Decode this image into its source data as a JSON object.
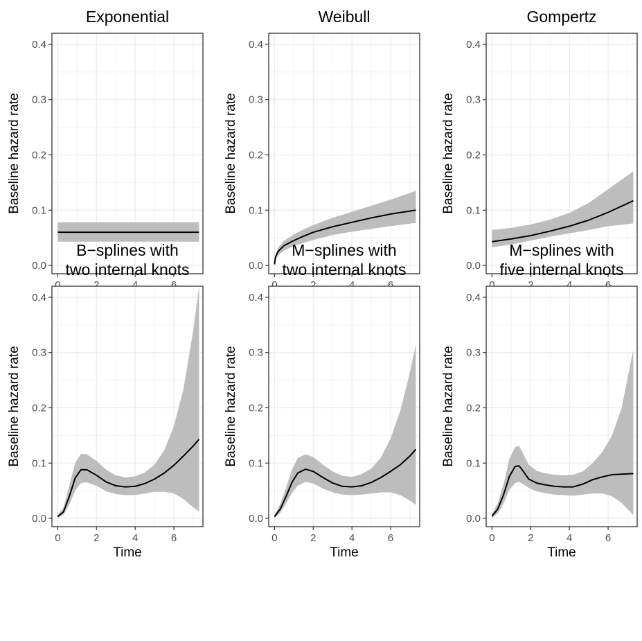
{
  "chart_data": [
    {
      "type": "line",
      "title": "Exponential",
      "xlabel": "Time",
      "ylabel": "Baseline hazard rate",
      "xlim": [
        -0.3,
        7.5
      ],
      "ylim": [
        -0.015,
        0.42
      ],
      "xticks": [
        "0",
        "2",
        "4",
        "6"
      ],
      "yticks": [
        "0.0",
        "0.1",
        "0.2",
        "0.3",
        "0.4"
      ],
      "grid": true,
      "x": [
        0,
        1,
        2,
        3,
        4,
        5,
        6,
        7.3
      ],
      "y": [
        0.06,
        0.06,
        0.06,
        0.06,
        0.06,
        0.06,
        0.06,
        0.06
      ],
      "lower": [
        0.043,
        0.043,
        0.043,
        0.043,
        0.043,
        0.043,
        0.043,
        0.043
      ],
      "upper": [
        0.078,
        0.078,
        0.078,
        0.078,
        0.078,
        0.078,
        0.078,
        0.078
      ]
    },
    {
      "type": "line",
      "title": "Weibull",
      "xlabel": "Time",
      "ylabel": "Baseline hazard rate",
      "xlim": [
        -0.3,
        7.5
      ],
      "ylim": [
        -0.015,
        0.42
      ],
      "xticks": [
        "0",
        "2",
        "4",
        "6"
      ],
      "yticks": [
        "0.0",
        "0.1",
        "0.2",
        "0.3",
        "0.4"
      ],
      "grid": true,
      "x": [
        0,
        0.05,
        0.2,
        0.5,
        1,
        1.5,
        2,
        3,
        4,
        5,
        6,
        7.3
      ],
      "y": [
        0.002,
        0.015,
        0.026,
        0.036,
        0.045,
        0.053,
        0.06,
        0.07,
        0.078,
        0.086,
        0.093,
        0.1
      ],
      "lower": [
        0.001,
        0.01,
        0.019,
        0.027,
        0.035,
        0.041,
        0.046,
        0.055,
        0.061,
        0.066,
        0.071,
        0.077
      ],
      "upper": [
        0.003,
        0.02,
        0.033,
        0.045,
        0.056,
        0.065,
        0.073,
        0.086,
        0.097,
        0.108,
        0.119,
        0.135
      ]
    },
    {
      "type": "line",
      "title": "Gompertz",
      "xlabel": "Time",
      "ylabel": "Baseline hazard rate",
      "xlim": [
        -0.3,
        7.5
      ],
      "ylim": [
        -0.015,
        0.42
      ],
      "xticks": [
        "0",
        "2",
        "4",
        "6"
      ],
      "yticks": [
        "0.0",
        "0.1",
        "0.2",
        "0.3",
        "0.4"
      ],
      "grid": true,
      "x": [
        0,
        1,
        2,
        3,
        4,
        5,
        6,
        7.3
      ],
      "y": [
        0.043,
        0.048,
        0.054,
        0.062,
        0.071,
        0.082,
        0.096,
        0.117
      ],
      "lower": [
        0.033,
        0.038,
        0.045,
        0.052,
        0.058,
        0.064,
        0.071,
        0.076
      ],
      "upper": [
        0.064,
        0.068,
        0.074,
        0.083,
        0.095,
        0.113,
        0.138,
        0.17
      ]
    },
    {
      "type": "line",
      "title": "B−splines with\ntwo internal knots",
      "xlabel": "Time",
      "ylabel": "Baseline hazard rate",
      "xlim": [
        -0.3,
        7.5
      ],
      "ylim": [
        -0.015,
        0.42
      ],
      "xticks": [
        "0",
        "2",
        "4",
        "6"
      ],
      "yticks": [
        "0.0",
        "0.1",
        "0.2",
        "0.3",
        "0.4"
      ],
      "grid": true,
      "x": [
        0,
        0.3,
        0.6,
        0.9,
        1.2,
        1.5,
        2,
        2.5,
        3,
        3.5,
        4,
        4.5,
        5,
        5.5,
        6,
        6.5,
        7,
        7.3
      ],
      "y": [
        0.003,
        0.012,
        0.04,
        0.073,
        0.088,
        0.088,
        0.078,
        0.066,
        0.059,
        0.057,
        0.058,
        0.063,
        0.071,
        0.082,
        0.096,
        0.113,
        0.131,
        0.143
      ],
      "lower": [
        0.001,
        0.007,
        0.025,
        0.05,
        0.064,
        0.065,
        0.059,
        0.049,
        0.044,
        0.042,
        0.042,
        0.045,
        0.048,
        0.048,
        0.045,
        0.035,
        0.02,
        0.012
      ],
      "upper": [
        0.006,
        0.02,
        0.06,
        0.1,
        0.117,
        0.116,
        0.104,
        0.088,
        0.078,
        0.074,
        0.076,
        0.083,
        0.097,
        0.123,
        0.167,
        0.235,
        0.34,
        0.42
      ]
    },
    {
      "type": "line",
      "title": "M−splines with\ntwo internal knots",
      "xlabel": "Time",
      "ylabel": "Baseline hazard rate",
      "xlim": [
        -0.3,
        7.5
      ],
      "ylim": [
        -0.015,
        0.42
      ],
      "xticks": [
        "0",
        "2",
        "4",
        "6"
      ],
      "yticks": [
        "0.0",
        "0.1",
        "0.2",
        "0.3",
        "0.4"
      ],
      "grid": true,
      "x": [
        0,
        0.3,
        0.6,
        0.9,
        1.2,
        1.6,
        2,
        2.5,
        3,
        3.5,
        4,
        4.5,
        5,
        5.5,
        6,
        6.5,
        7,
        7.3
      ],
      "y": [
        0.003,
        0.017,
        0.04,
        0.065,
        0.082,
        0.089,
        0.085,
        0.074,
        0.064,
        0.058,
        0.057,
        0.059,
        0.065,
        0.074,
        0.085,
        0.097,
        0.113,
        0.125
      ],
      "lower": [
        0.001,
        0.01,
        0.027,
        0.046,
        0.059,
        0.066,
        0.063,
        0.054,
        0.047,
        0.043,
        0.042,
        0.043,
        0.045,
        0.047,
        0.047,
        0.042,
        0.032,
        0.024
      ],
      "upper": [
        0.007,
        0.026,
        0.056,
        0.088,
        0.109,
        0.116,
        0.111,
        0.097,
        0.085,
        0.077,
        0.075,
        0.08,
        0.09,
        0.11,
        0.145,
        0.195,
        0.265,
        0.315
      ]
    },
    {
      "type": "line",
      "title": "M−splines with\nfive internal knots",
      "xlabel": "Time",
      "ylabel": "Baseline hazard rate",
      "xlim": [
        -0.3,
        7.5
      ],
      "ylim": [
        -0.015,
        0.42
      ],
      "xticks": [
        "0",
        "2",
        "4",
        "6"
      ],
      "yticks": [
        "0.0",
        "0.1",
        "0.2",
        "0.3",
        "0.4"
      ],
      "grid": true,
      "x": [
        0,
        0.3,
        0.6,
        0.9,
        1.2,
        1.4,
        1.6,
        1.9,
        2.3,
        2.7,
        3.2,
        3.7,
        4.2,
        4.7,
        5.2,
        5.7,
        6.2,
        6.7,
        7.3
      ],
      "y": [
        0.004,
        0.017,
        0.043,
        0.076,
        0.094,
        0.095,
        0.086,
        0.071,
        0.064,
        0.061,
        0.058,
        0.057,
        0.057,
        0.062,
        0.07,
        0.075,
        0.079,
        0.08,
        0.081
      ],
      "lower": [
        0.001,
        0.009,
        0.027,
        0.052,
        0.064,
        0.066,
        0.062,
        0.055,
        0.049,
        0.046,
        0.043,
        0.042,
        0.041,
        0.043,
        0.045,
        0.045,
        0.04,
        0.028,
        0.006
      ],
      "upper": [
        0.008,
        0.028,
        0.062,
        0.108,
        0.129,
        0.131,
        0.118,
        0.097,
        0.086,
        0.082,
        0.079,
        0.078,
        0.079,
        0.085,
        0.1,
        0.12,
        0.15,
        0.2,
        0.305
      ]
    }
  ]
}
